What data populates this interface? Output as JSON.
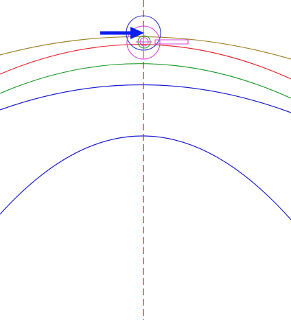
{
  "drawing": {
    "background": "#ffffff",
    "colors": {
      "arc_olive": "#a0822a",
      "arc_red": "#e8242b",
      "arc_green": "#1e9a2a",
      "arc_blue": "#1a1ad0",
      "centerline": "#d0182b",
      "marker_magenta": "#d63cd8",
      "marker_blue": "#2e36c8",
      "marker_green": "#2a9a2a",
      "pointer_arrow": "#0a1cf0"
    },
    "icons": [
      "pointer-arrow-icon",
      "tool-marker-icon"
    ]
  }
}
